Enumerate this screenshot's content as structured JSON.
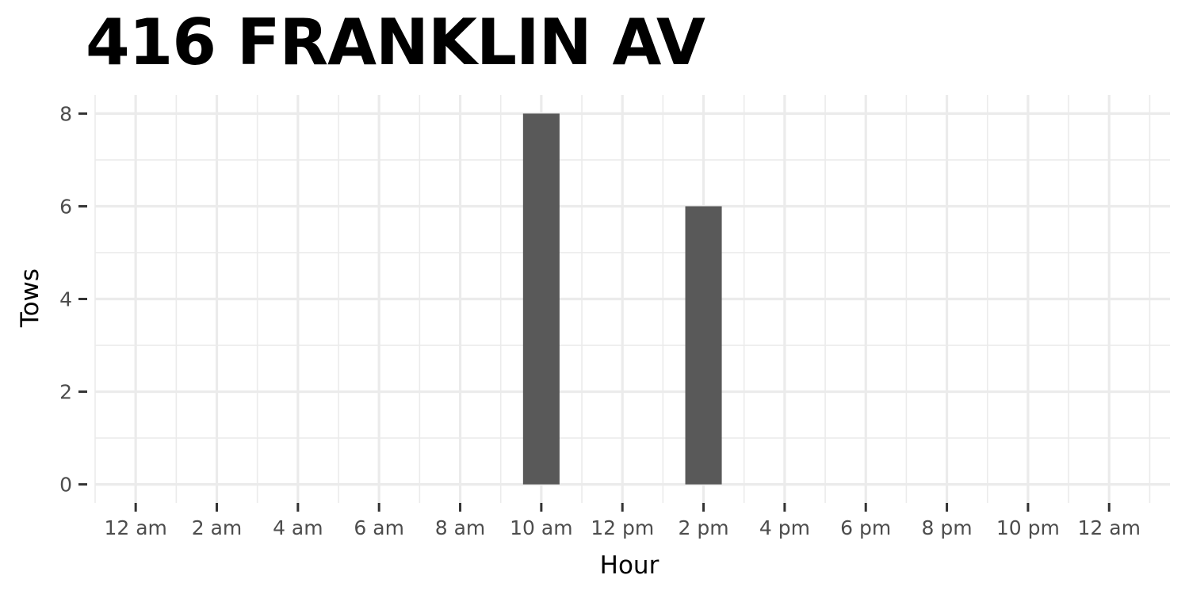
{
  "chart_data": {
    "type": "bar",
    "title": "416 FRANKLIN AV",
    "xlabel": "Hour",
    "ylabel": "Tows",
    "x_tick_labels": [
      "12 am",
      "2 am",
      "4 am",
      "6 am",
      "8 am",
      "10 am",
      "12 pm",
      "2 pm",
      "4 pm",
      "6 pm",
      "8 pm",
      "10 pm",
      "12 am"
    ],
    "x_tick_hours": [
      0,
      2,
      4,
      6,
      8,
      10,
      12,
      14,
      16,
      18,
      20,
      22,
      24
    ],
    "y_tick_labels": [
      "0",
      "2",
      "4",
      "6",
      "8"
    ],
    "y_ticks": [
      0,
      2,
      4,
      6,
      8
    ],
    "xlim": [
      -1,
      25.5
    ],
    "ylim": [
      -0.4,
      8.4
    ],
    "bars": [
      {
        "hour": 10,
        "label": "10 am",
        "value": 8
      },
      {
        "hour": 14,
        "label": "2 pm",
        "value": 6
      }
    ],
    "bar_color": "#595959",
    "grid": true,
    "grid_color": "#ebebeb",
    "legend": "none"
  }
}
